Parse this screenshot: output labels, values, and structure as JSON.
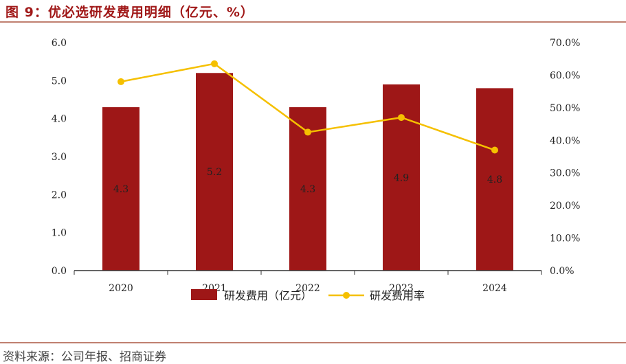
{
  "title": "图 9：优必选研发费用明细（亿元、%）",
  "source": "资料来源：公司年报、招商证券",
  "colors": {
    "bar": "#9e1717",
    "line": "#f5c000",
    "title": "#a01818"
  },
  "chart_data": {
    "type": "bar+line",
    "categories": [
      "2020",
      "2021",
      "2022",
      "2023",
      "2024"
    ],
    "series": [
      {
        "name": "研发费用（亿元）",
        "type": "bar",
        "axis": "left",
        "values": [
          4.3,
          5.2,
          4.3,
          4.9,
          4.8
        ],
        "labels": [
          "4.3",
          "5.2",
          "4.3",
          "4.9",
          "4.8"
        ]
      },
      {
        "name": "研发费用率",
        "type": "line",
        "axis": "right",
        "values": [
          58.0,
          63.5,
          42.5,
          47.0,
          37.0
        ]
      }
    ],
    "y_left": {
      "min": 0,
      "max": 6,
      "ticks": [
        "0.0",
        "1.0",
        "2.0",
        "3.0",
        "4.0",
        "5.0",
        "6.0"
      ]
    },
    "y_right": {
      "min": 0,
      "max": 70,
      "ticks": [
        "0.0%",
        "10.0%",
        "20.0%",
        "30.0%",
        "40.0%",
        "50.0%",
        "60.0%",
        "70.0%"
      ]
    },
    "grid": false,
    "legend_position": "bottom-center"
  }
}
